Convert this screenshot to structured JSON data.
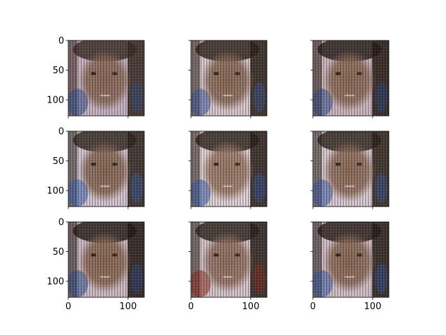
{
  "figure": {
    "grid": {
      "rows": 3,
      "cols": 3,
      "sharex": true,
      "sharey": true
    },
    "axes": {
      "xlim": [
        0,
        127
      ],
      "ylim": [
        127,
        0
      ],
      "xticks": [
        0,
        100
      ],
      "yticks": [
        0,
        50,
        100
      ],
      "x_tick_labels": [
        "0",
        "100"
      ],
      "y_tick_labels": [
        "0",
        "50",
        "100"
      ]
    },
    "panels": [
      {
        "id": "r1c1",
        "content": "generated blurry face image, frontal child-like face, vertical stripe artifacts",
        "palette": [
          "#8c6a58",
          "#3a2a22",
          "#c9b4c4",
          "#2f4f8f"
        ]
      },
      {
        "id": "r1c2",
        "content": "generated blurry face image, head tilted, dark stripe artifacts",
        "palette": [
          "#8a6a55",
          "#2d2018",
          "#d8c8d0",
          "#3a5aa0"
        ]
      },
      {
        "id": "r1c3",
        "content": "generated blurry face image, dark hair band on top",
        "palette": [
          "#8d6b57",
          "#261b16",
          "#cdb7c0",
          "#2c4c8c"
        ]
      },
      {
        "id": "r2c1",
        "content": "generated blurry face image, bluish patches on left",
        "palette": [
          "#8a6855",
          "#2f241d",
          "#d4c7d3",
          "#3b62b0"
        ]
      },
      {
        "id": "r2c2",
        "content": "generated blurry face image, lighter face with dark right side",
        "palette": [
          "#9a7864",
          "#2a1f19",
          "#e0d2d8",
          "#3559a8"
        ]
      },
      {
        "id": "r2c3",
        "content": "generated blurry face image, pale background on left",
        "palette": [
          "#8e6c59",
          "#2d221b",
          "#d9cbd2",
          "#3a5aa6"
        ]
      },
      {
        "id": "r3c1",
        "content": "generated blurry face image, dark stripes around face",
        "palette": [
          "#8b6854",
          "#231914",
          "#d0bcc6",
          "#2e4e90"
        ]
      },
      {
        "id": "r3c2",
        "content": "generated blurry face image, red vertical stripe at right",
        "palette": [
          "#927060",
          "#2b201a",
          "#d6c6cc",
          "#8f2a1a"
        ]
      },
      {
        "id": "r3c3",
        "content": "generated blurry face image, bluish lower-left region",
        "palette": [
          "#8c6a56",
          "#271c17",
          "#d2bfc8",
          "#3657a2"
        ]
      }
    ]
  }
}
